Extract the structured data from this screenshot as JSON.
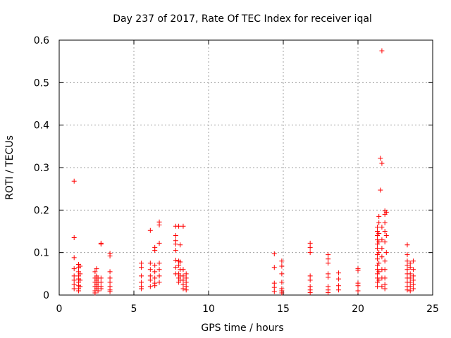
{
  "chart_data": {
    "type": "scatter",
    "title": "Day 237 of 2017, Rate Of TEC Index for receiver iqal",
    "xlabel": "GPS time / hours",
    "ylabel": "ROTI / TECUs",
    "xlim": [
      0,
      25
    ],
    "ylim": [
      0,
      0.6
    ],
    "x_ticks": [
      0,
      5,
      10,
      15,
      20,
      25
    ],
    "x_tick_labels": [
      "0",
      "5",
      "10",
      "15",
      "20",
      "25"
    ],
    "y_ticks": [
      0,
      0.1,
      0.2,
      0.3,
      0.4,
      0.5,
      0.6
    ],
    "y_tick_labels": [
      "0",
      "0.1",
      "0.2",
      "0.3",
      "0.4",
      "0.5",
      "0.6"
    ],
    "grid": true,
    "marker": "+",
    "color": "#ff0000",
    "series": [
      {
        "name": "ROTI",
        "points": [
          [
            1.0,
            0.268
          ],
          [
            1.0,
            0.135
          ],
          [
            1.0,
            0.088
          ],
          [
            1.0,
            0.062
          ],
          [
            1.0,
            0.045
          ],
          [
            1.0,
            0.035
          ],
          [
            1.0,
            0.025
          ],
          [
            1.0,
            0.015
          ],
          [
            1.3,
            0.072
          ],
          [
            1.3,
            0.065
          ],
          [
            1.3,
            0.055
          ],
          [
            1.3,
            0.045
          ],
          [
            1.3,
            0.038
          ],
          [
            1.3,
            0.03
          ],
          [
            1.3,
            0.022
          ],
          [
            1.3,
            0.015
          ],
          [
            1.3,
            0.01
          ],
          [
            1.4,
            0.068
          ],
          [
            1.4,
            0.05
          ],
          [
            1.4,
            0.035
          ],
          [
            1.4,
            0.02
          ],
          [
            2.4,
            0.055
          ],
          [
            2.4,
            0.04
          ],
          [
            2.4,
            0.03
          ],
          [
            2.4,
            0.02
          ],
          [
            2.4,
            0.01
          ],
          [
            2.4,
            0.005
          ],
          [
            2.5,
            0.062
          ],
          [
            2.5,
            0.045
          ],
          [
            2.5,
            0.035
          ],
          [
            2.5,
            0.025
          ],
          [
            2.5,
            0.015
          ],
          [
            2.6,
            0.04
          ],
          [
            2.6,
            0.03
          ],
          [
            2.6,
            0.02
          ],
          [
            2.6,
            0.01
          ],
          [
            2.8,
            0.122
          ],
          [
            2.8,
            0.12
          ],
          [
            2.8,
            0.04
          ],
          [
            2.8,
            0.03
          ],
          [
            2.8,
            0.02
          ],
          [
            2.8,
            0.015
          ],
          [
            3.4,
            0.098
          ],
          [
            3.4,
            0.092
          ],
          [
            3.4,
            0.055
          ],
          [
            3.4,
            0.04
          ],
          [
            3.4,
            0.03
          ],
          [
            3.4,
            0.02
          ],
          [
            3.4,
            0.012
          ],
          [
            3.4,
            0.008
          ],
          [
            5.5,
            0.075
          ],
          [
            5.5,
            0.065
          ],
          [
            5.5,
            0.045
          ],
          [
            5.5,
            0.03
          ],
          [
            5.5,
            0.02
          ],
          [
            5.5,
            0.015
          ],
          [
            6.1,
            0.152
          ],
          [
            6.1,
            0.075
          ],
          [
            6.1,
            0.06
          ],
          [
            6.1,
            0.045
          ],
          [
            6.1,
            0.035
          ],
          [
            6.1,
            0.02
          ],
          [
            6.4,
            0.112
          ],
          [
            6.4,
            0.105
          ],
          [
            6.4,
            0.07
          ],
          [
            6.4,
            0.055
          ],
          [
            6.4,
            0.04
          ],
          [
            6.4,
            0.028
          ],
          [
            6.4,
            0.022
          ],
          [
            6.7,
            0.172
          ],
          [
            6.7,
            0.165
          ],
          [
            6.7,
            0.122
          ],
          [
            6.7,
            0.075
          ],
          [
            6.7,
            0.06
          ],
          [
            6.7,
            0.045
          ],
          [
            6.7,
            0.03
          ],
          [
            7.8,
            0.162
          ],
          [
            7.8,
            0.14
          ],
          [
            7.8,
            0.128
          ],
          [
            7.8,
            0.12
          ],
          [
            7.8,
            0.105
          ],
          [
            7.8,
            0.082
          ],
          [
            7.8,
            0.065
          ],
          [
            7.8,
            0.05
          ],
          [
            8.0,
            0.162
          ],
          [
            8.0,
            0.08
          ],
          [
            8.0,
            0.07
          ],
          [
            8.0,
            0.05
          ],
          [
            8.0,
            0.04
          ],
          [
            8.0,
            0.03
          ],
          [
            8.1,
            0.118
          ],
          [
            8.1,
            0.078
          ],
          [
            8.1,
            0.06
          ],
          [
            8.1,
            0.045
          ],
          [
            8.1,
            0.035
          ],
          [
            8.3,
            0.162
          ],
          [
            8.3,
            0.06
          ],
          [
            8.3,
            0.045
          ],
          [
            8.3,
            0.035
          ],
          [
            8.3,
            0.025
          ],
          [
            8.3,
            0.015
          ],
          [
            8.5,
            0.05
          ],
          [
            8.5,
            0.04
          ],
          [
            8.5,
            0.03
          ],
          [
            8.5,
            0.02
          ],
          [
            8.5,
            0.012
          ],
          [
            14.4,
            0.097
          ],
          [
            14.4,
            0.065
          ],
          [
            14.4,
            0.028
          ],
          [
            14.4,
            0.018
          ],
          [
            14.4,
            0.008
          ],
          [
            14.9,
            0.08
          ],
          [
            14.9,
            0.068
          ],
          [
            14.9,
            0.05
          ],
          [
            14.9,
            0.03
          ],
          [
            14.9,
            0.015
          ],
          [
            14.9,
            0.01
          ],
          [
            14.9,
            0.005
          ],
          [
            16.8,
            0.122
          ],
          [
            16.8,
            0.112
          ],
          [
            16.8,
            0.1
          ],
          [
            16.8,
            0.045
          ],
          [
            16.8,
            0.035
          ],
          [
            16.8,
            0.02
          ],
          [
            16.8,
            0.012
          ],
          [
            16.8,
            0.006
          ],
          [
            18.0,
            0.095
          ],
          [
            18.0,
            0.085
          ],
          [
            18.0,
            0.075
          ],
          [
            18.0,
            0.05
          ],
          [
            18.0,
            0.042
          ],
          [
            18.0,
            0.02
          ],
          [
            18.0,
            0.012
          ],
          [
            18.0,
            0.006
          ],
          [
            18.7,
            0.052
          ],
          [
            18.7,
            0.038
          ],
          [
            18.7,
            0.022
          ],
          [
            18.7,
            0.012
          ],
          [
            20.0,
            0.062
          ],
          [
            20.0,
            0.058
          ],
          [
            20.0,
            0.028
          ],
          [
            20.0,
            0.022
          ],
          [
            20.0,
            0.01
          ],
          [
            21.3,
            0.16
          ],
          [
            21.3,
            0.15
          ],
          [
            21.3,
            0.14
          ],
          [
            21.3,
            0.13
          ],
          [
            21.3,
            0.12
          ],
          [
            21.3,
            0.11
          ],
          [
            21.3,
            0.095
          ],
          [
            21.3,
            0.085
          ],
          [
            21.3,
            0.07
          ],
          [
            21.3,
            0.06
          ],
          [
            21.3,
            0.05
          ],
          [
            21.3,
            0.04
          ],
          [
            21.3,
            0.03
          ],
          [
            21.3,
            0.02
          ],
          [
            21.4,
            0.185
          ],
          [
            21.4,
            0.17
          ],
          [
            21.4,
            0.145
          ],
          [
            21.4,
            0.125
          ],
          [
            21.4,
            0.1
          ],
          [
            21.4,
            0.075
          ],
          [
            21.4,
            0.055
          ],
          [
            21.4,
            0.035
          ],
          [
            21.5,
            0.322
          ],
          [
            21.5,
            0.247
          ],
          [
            21.6,
            0.575
          ],
          [
            21.6,
            0.31
          ],
          [
            21.6,
            0.16
          ],
          [
            21.6,
            0.13
          ],
          [
            21.6,
            0.11
          ],
          [
            21.6,
            0.09
          ],
          [
            21.6,
            0.06
          ],
          [
            21.6,
            0.04
          ],
          [
            21.6,
            0.02
          ],
          [
            21.8,
            0.198
          ],
          [
            21.8,
            0.19
          ],
          [
            21.8,
            0.17
          ],
          [
            21.8,
            0.15
          ],
          [
            21.8,
            0.125
          ],
          [
            21.8,
            0.08
          ],
          [
            21.8,
            0.06
          ],
          [
            21.8,
            0.04
          ],
          [
            21.8,
            0.025
          ],
          [
            21.8,
            0.015
          ],
          [
            21.9,
            0.195
          ],
          [
            21.9,
            0.14
          ],
          [
            21.9,
            0.1
          ],
          [
            23.3,
            0.118
          ],
          [
            23.3,
            0.095
          ],
          [
            23.3,
            0.08
          ],
          [
            23.3,
            0.07
          ],
          [
            23.3,
            0.06
          ],
          [
            23.3,
            0.05
          ],
          [
            23.3,
            0.04
          ],
          [
            23.3,
            0.03
          ],
          [
            23.3,
            0.02
          ],
          [
            23.3,
            0.012
          ],
          [
            23.5,
            0.075
          ],
          [
            23.5,
            0.065
          ],
          [
            23.5,
            0.05
          ],
          [
            23.5,
            0.04
          ],
          [
            23.5,
            0.03
          ],
          [
            23.5,
            0.02
          ],
          [
            23.5,
            0.01
          ],
          [
            23.7,
            0.08
          ],
          [
            23.7,
            0.06
          ],
          [
            23.7,
            0.045
          ],
          [
            23.7,
            0.035
          ],
          [
            23.7,
            0.025
          ],
          [
            23.7,
            0.015
          ]
        ]
      }
    ]
  }
}
